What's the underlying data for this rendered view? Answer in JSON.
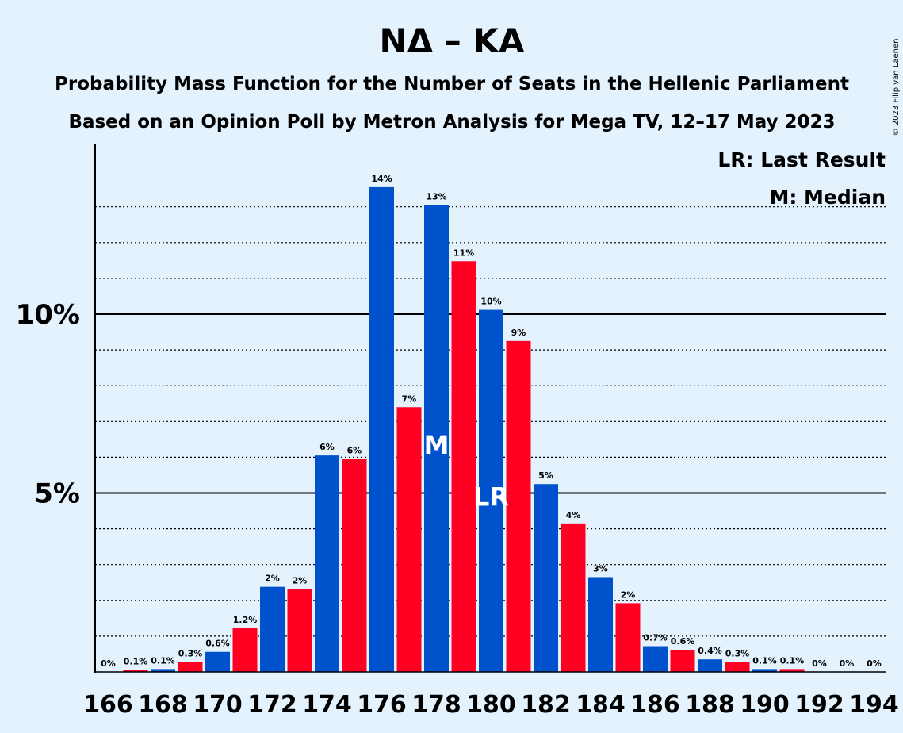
{
  "chart_data": {
    "type": "bar",
    "title": "ΝΔ – ΚΑ",
    "subtitle": "Probability Mass Function for the Number of Seats in the Hellenic Parliament",
    "subtitle2": "Based on an Opinion Poll by Metron Analysis for Mega TV, 12–17 May 2023",
    "copyright": "© 2023 Filip van Laenen",
    "legend": {
      "lr": "LR: Last Result",
      "median": "M: Median",
      "placement": "top-right"
    },
    "ylim": [
      0,
      14.5
    ],
    "y_ticks": [
      {
        "value": 5,
        "label": "5%"
      },
      {
        "value": 10,
        "label": "10%"
      }
    ],
    "grid": "dotted horizontal lines every 1%",
    "x_tick_labels": [
      "166",
      "168",
      "170",
      "172",
      "174",
      "176",
      "178",
      "180",
      "182",
      "184",
      "186",
      "188",
      "190",
      "192",
      "194"
    ],
    "colors": {
      "blue": "#0052cc",
      "red": "#ff0022",
      "background": "#e3f2fd"
    },
    "median_seat": 178,
    "last_result_seat": 180,
    "bars": [
      {
        "x": 166,
        "value": 0.0,
        "label": "0%",
        "color": "blue"
      },
      {
        "x": 167,
        "value": 0.05,
        "label": "0.1%",
        "color": "red"
      },
      {
        "x": 168,
        "value": 0.08,
        "label": "0.1%",
        "color": "blue"
      },
      {
        "x": 169,
        "value": 0.28,
        "label": "0.3%",
        "color": "red"
      },
      {
        "x": 170,
        "value": 0.56,
        "label": "0.6%",
        "color": "blue"
      },
      {
        "x": 171,
        "value": 1.22,
        "label": "1.2%",
        "color": "red"
      },
      {
        "x": 172,
        "value": 2.38,
        "label": "2%",
        "color": "blue"
      },
      {
        "x": 173,
        "value": 2.32,
        "label": "2%",
        "color": "red"
      },
      {
        "x": 174,
        "value": 6.05,
        "label": "6%",
        "color": "blue"
      },
      {
        "x": 175,
        "value": 5.95,
        "label": "6%",
        "color": "red"
      },
      {
        "x": 176,
        "value": 13.55,
        "label": "14%",
        "color": "blue"
      },
      {
        "x": 177,
        "value": 7.4,
        "label": "7%",
        "color": "red"
      },
      {
        "x": 178,
        "value": 13.05,
        "label": "13%",
        "color": "blue"
      },
      {
        "x": 179,
        "value": 11.48,
        "label": "11%",
        "color": "red"
      },
      {
        "x": 180,
        "value": 10.12,
        "label": "10%",
        "color": "blue"
      },
      {
        "x": 181,
        "value": 9.25,
        "label": "9%",
        "color": "red"
      },
      {
        "x": 182,
        "value": 5.25,
        "label": "5%",
        "color": "blue"
      },
      {
        "x": 183,
        "value": 4.15,
        "label": "4%",
        "color": "red"
      },
      {
        "x": 184,
        "value": 2.65,
        "label": "3%",
        "color": "blue"
      },
      {
        "x": 185,
        "value": 1.92,
        "label": "2%",
        "color": "red"
      },
      {
        "x": 186,
        "value": 0.72,
        "label": "0.7%",
        "color": "blue"
      },
      {
        "x": 187,
        "value": 0.62,
        "label": "0.6%",
        "color": "red"
      },
      {
        "x": 188,
        "value": 0.35,
        "label": "0.4%",
        "color": "blue"
      },
      {
        "x": 189,
        "value": 0.28,
        "label": "0.3%",
        "color": "red"
      },
      {
        "x": 190,
        "value": 0.08,
        "label": "0.1%",
        "color": "blue"
      },
      {
        "x": 191,
        "value": 0.08,
        "label": "0.1%",
        "color": "red"
      },
      {
        "x": 192,
        "value": 0.0,
        "label": "0%",
        "color": "blue"
      },
      {
        "x": 193,
        "value": 0.0,
        "label": "0%",
        "color": "red"
      },
      {
        "x": 194,
        "value": 0.0,
        "label": "0%",
        "color": "blue"
      }
    ]
  }
}
